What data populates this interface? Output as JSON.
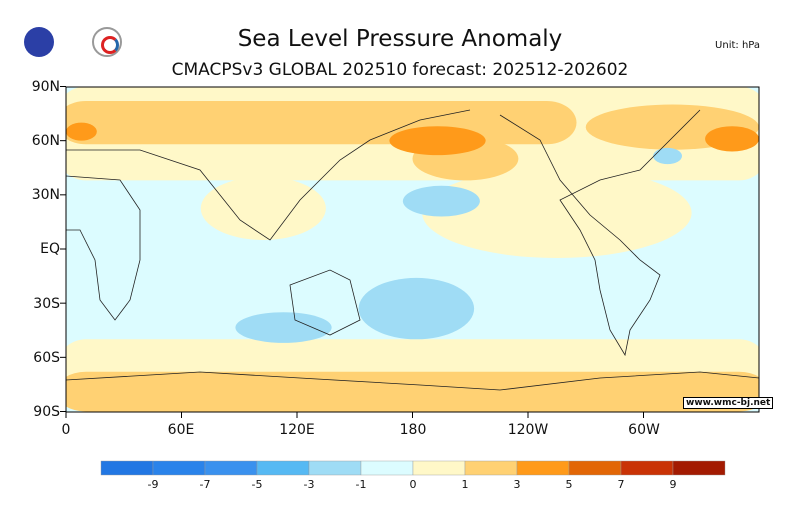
{
  "header": {
    "title": "Sea Level Pressure Anomaly",
    "subtitle": "CMACPSv3 GLOBAL 202510 forecast: 202512-202602",
    "unit": "Unit: hPa",
    "logos": [
      "NCC",
      "BCC"
    ]
  },
  "credit": "www.wmc-bj.net",
  "chart_data": {
    "type": "heatmap",
    "title": "Sea Level Pressure Anomaly",
    "lat_ticks": [
      "90N",
      "60N",
      "30N",
      "EQ",
      "30S",
      "60S",
      "90S"
    ],
    "lon_ticks": [
      "0",
      "60E",
      "120E",
      "180",
      "120W",
      "60W"
    ],
    "colorbar": {
      "labels": [
        "-9",
        "-7",
        "-5",
        "-3",
        "-1",
        "0",
        "1",
        "3",
        "5",
        "7",
        "9"
      ],
      "colors": [
        "#2277e3",
        "#2a83ea",
        "#3a91ee",
        "#56b9f3",
        "#9fdcf5",
        "#dcfcff",
        "#fff8c8",
        "#ffd173",
        "#ff9a1a",
        "#e26606",
        "#c93306",
        "#a31b02"
      ]
    },
    "regions": [
      {
        "level": "0-1",
        "color": "#fff8c8",
        "lon": [
          0,
          360
        ],
        "lat": [
          38,
          90
        ]
      },
      {
        "level": "0-1",
        "color": "#fff8c8",
        "lon": [
          0,
          360
        ],
        "lat": [
          -90,
          -50
        ]
      },
      {
        "level": "0-1",
        "color": "#fff8c8",
        "lon": [
          185,
          325
        ],
        "lat": [
          -5,
          45
        ]
      },
      {
        "level": "0-1",
        "color": "#fff8c8",
        "lon": [
          70,
          135
        ],
        "lat": [
          5,
          40
        ]
      },
      {
        "level": "1-3",
        "color": "#ffd173",
        "lon": [
          0,
          260
        ],
        "lat": [
          58,
          82
        ]
      },
      {
        "level": "1-3",
        "color": "#ffd173",
        "lon": [
          270,
          360
        ],
        "lat": [
          55,
          80
        ]
      },
      {
        "level": "1-3",
        "color": "#ffd173",
        "lon": [
          0,
          360
        ],
        "lat": [
          -90,
          -68
        ]
      },
      {
        "level": "1-3",
        "color": "#ffd173",
        "lon": [
          180,
          235
        ],
        "lat": [
          38,
          62
        ]
      },
      {
        "level": "3-5",
        "color": "#ff9a1a",
        "lon": [
          168,
          218
        ],
        "lat": [
          52,
          68
        ]
      },
      {
        "level": "3-5",
        "color": "#ff9a1a",
        "lon": [
          332,
          360
        ],
        "lat": [
          54,
          68
        ]
      },
      {
        "level": "3-5",
        "color": "#ff9a1a",
        "lon": [
          0,
          16
        ],
        "lat": [
          60,
          70
        ]
      },
      {
        "level": "-1--3",
        "color": "#9fdcf5",
        "lon": [
          175,
          215
        ],
        "lat": [
          18,
          35
        ]
      },
      {
        "level": "-1--3",
        "color": "#9fdcf5",
        "lon": [
          152,
          212
        ],
        "lat": [
          -50,
          -16
        ]
      },
      {
        "level": "-1--3",
        "color": "#9fdcf5",
        "lon": [
          88,
          138
        ],
        "lat": [
          -52,
          -35
        ]
      },
      {
        "level": "-1--3",
        "color": "#9fdcf5",
        "lon": [
          305,
          320
        ],
        "lat": [
          47,
          56
        ]
      }
    ]
  }
}
